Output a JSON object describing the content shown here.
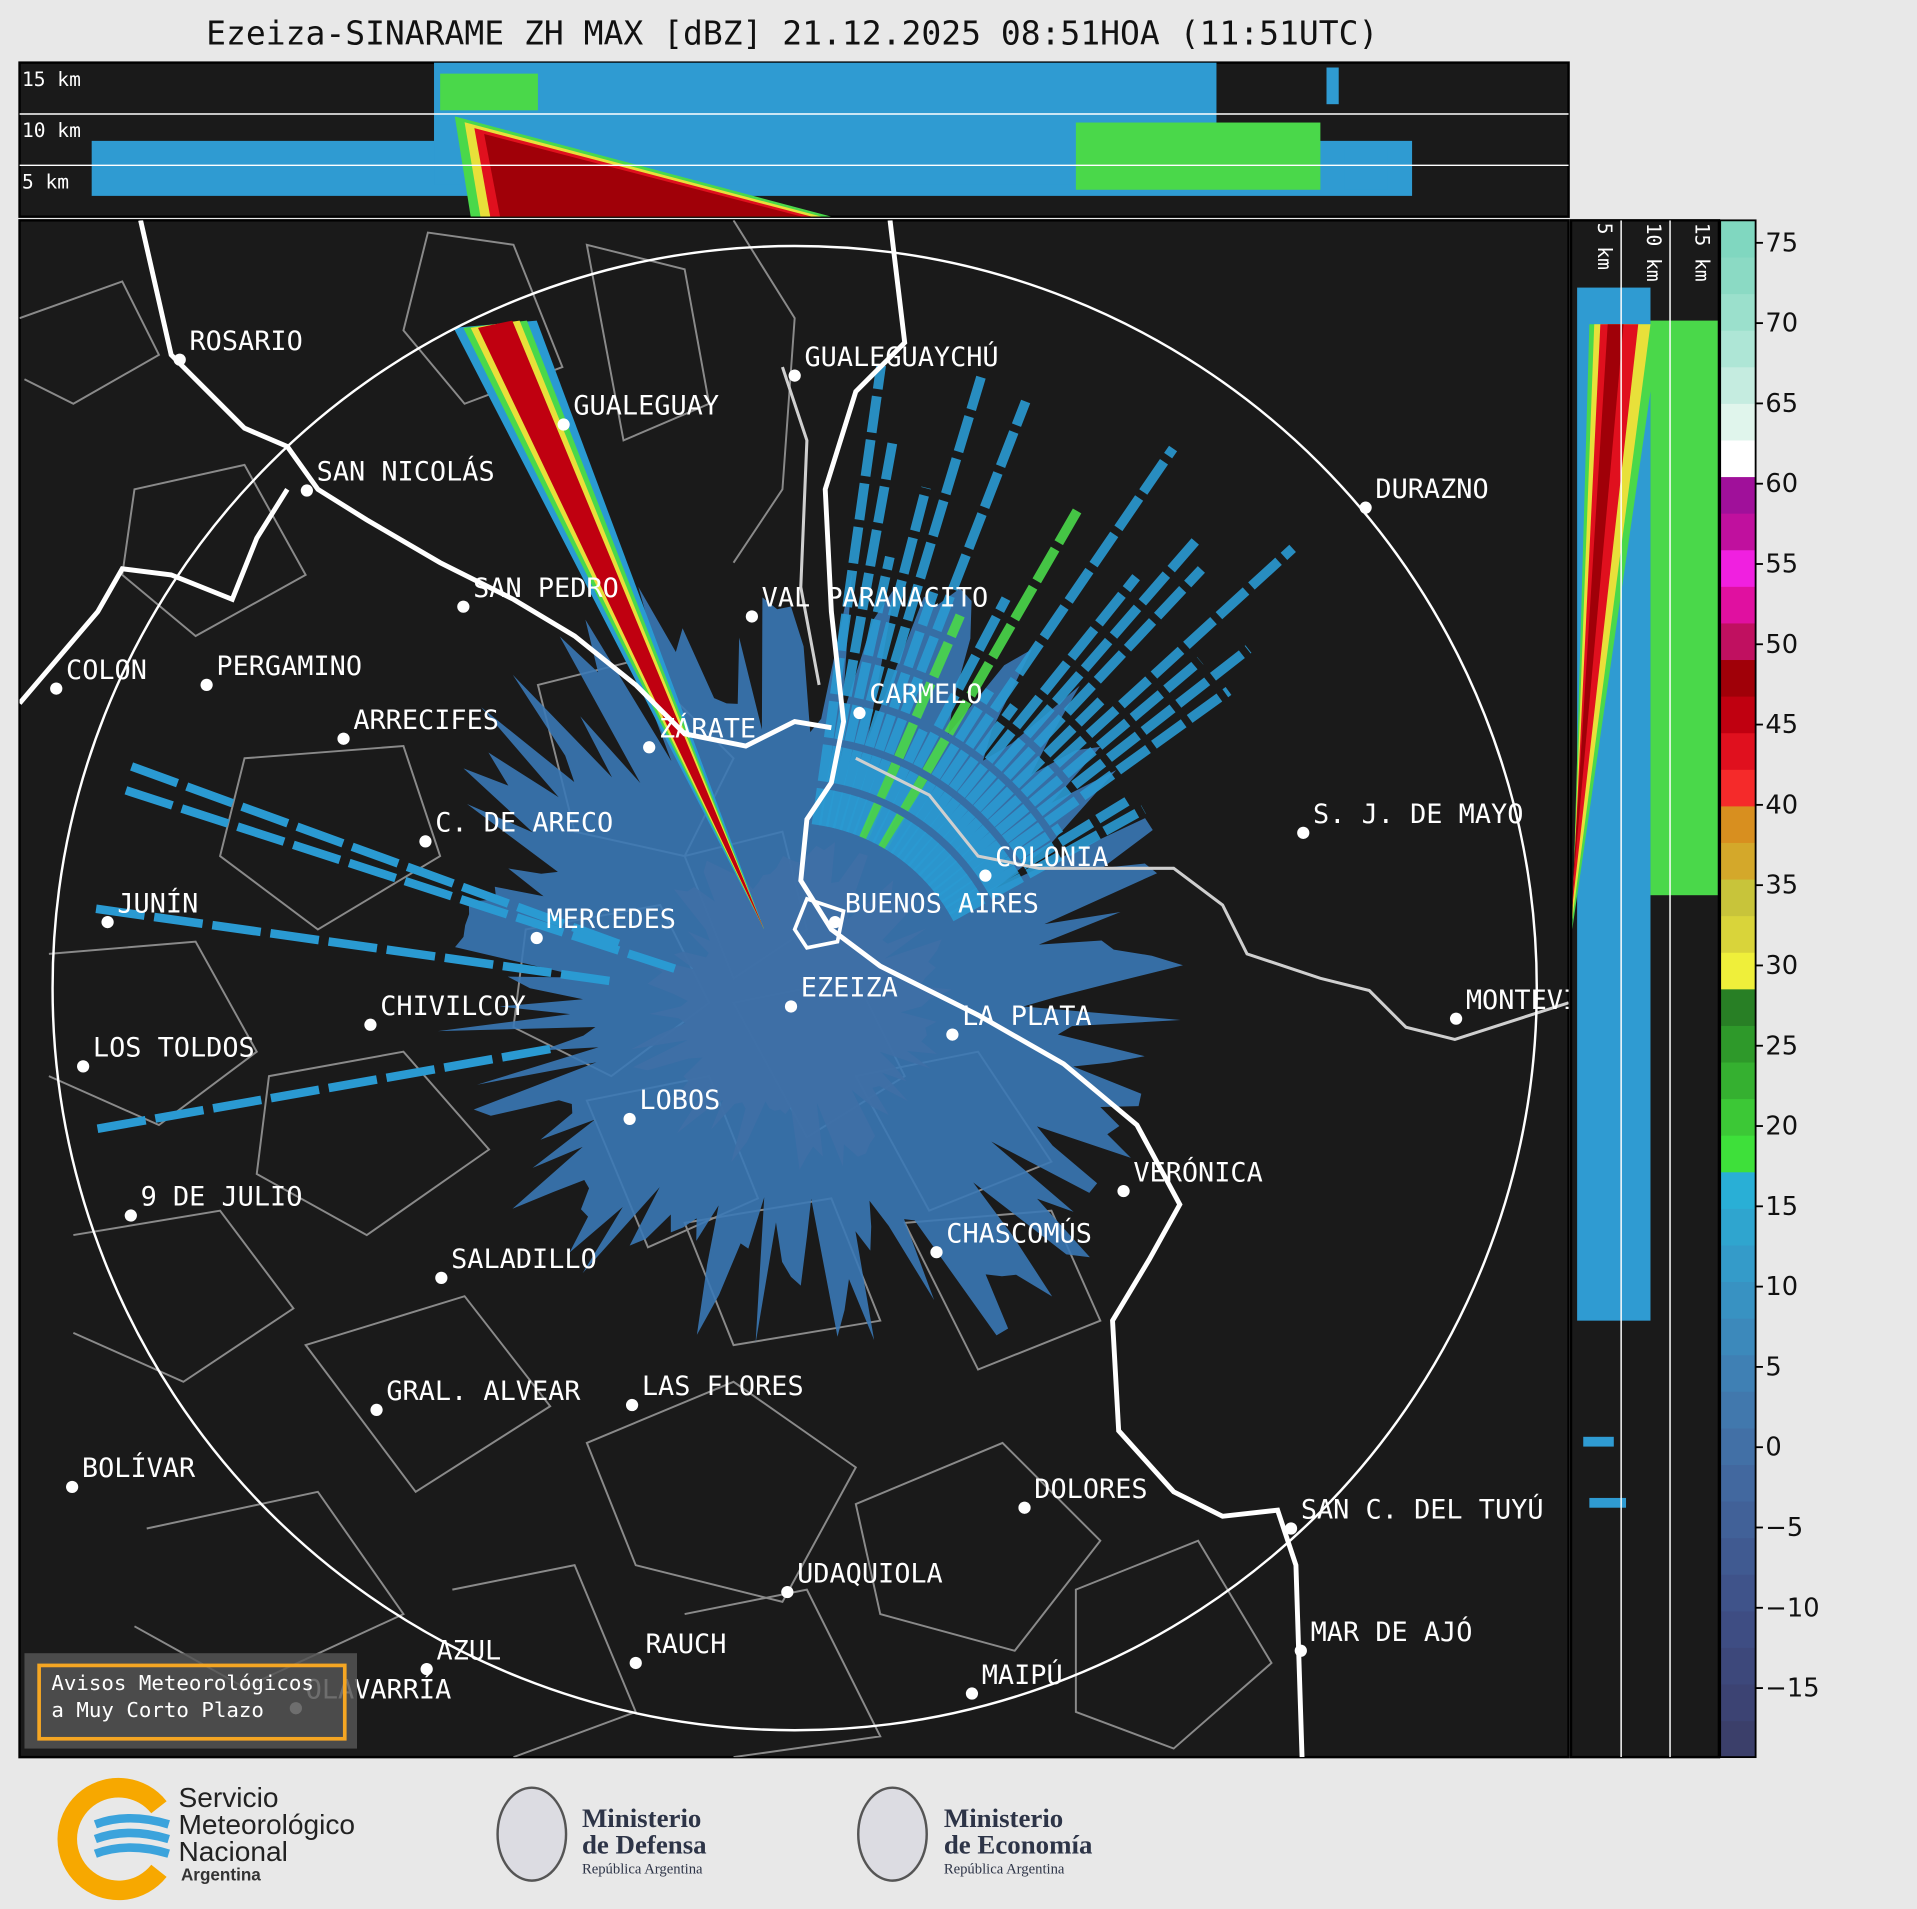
{
  "title": "Ezeiza-SINARAME ZH MAX [dBZ] 21.12.2025 08:51HOA (11:51UTC)",
  "height_labels_top": [
    "15 km",
    "10 km",
    "5 km"
  ],
  "height_labels_side": [
    "5 km",
    "10 km",
    "15 km"
  ],
  "cities": [
    "ROSARIO",
    "GUALEGUAYCHÚ",
    "GUALEGUAY",
    "SAN NICOLÁS",
    "DURAZNO",
    "SAN PEDRO",
    "VAL PARANACITO",
    "COLON",
    "PERGAMINO",
    "CARMELO",
    "ARRECIFES",
    "ZÁRATE",
    "S. J. DE MAYO",
    "C. DE ARECO",
    "COLONIA",
    "BUENOS AIRES",
    "JUNÍN",
    "MERCEDES",
    "EZEIZA",
    "MONTEVIDEO",
    "CHIVILCOY",
    "LA PLATA",
    "LOS TOLDOS",
    "LOBOS",
    "VERÓNICA",
    "9 DE JULIO",
    "CHASCOMÚS",
    "SALADILLO",
    "GRAL. ALVEAR",
    "LAS FLORES",
    "BOLÍVAR",
    "DOLORES",
    "SAN C. DEL TUYÚ",
    "UDAQUIOLA",
    "MAR DE AJÓ",
    "RAUCH",
    "AZUL",
    "OLAVARRÍA",
    "MAIPÚ"
  ],
  "colorbar": {
    "lim": [
      -19.3,
      76.4
    ],
    "ticks": [
      75,
      70,
      65,
      60,
      55,
      50,
      45,
      40,
      35,
      30,
      25,
      20,
      15,
      10,
      5,
      0,
      {
        "value": -5,
        "label": "−5"
      },
      {
        "value": -10,
        "label": "−10"
      },
      {
        "value": -15,
        "label": "−15"
      }
    ],
    "colors": [
      "#3b3f6a",
      "#3c4373",
      "#3d487b",
      "#3e4d83",
      "#3f538a",
      "#405a91",
      "#416198",
      "#42689f",
      "#4270a6",
      "#4178ad",
      "#3f80b4",
      "#3c89bb",
      "#3892c2",
      "#349bc9",
      "#2fa5cf",
      "#29afd6",
      "#3ee03a",
      "#3cc836",
      "#35b030",
      "#2e992a",
      "#287f25",
      "#efef3a",
      "#d9d43a",
      "#c8c43a",
      "#d4a82a",
      "#d88f1f",
      "#f52a2a",
      "#e0101e",
      "#c00010",
      "#a00008",
      "#c01060",
      "#e010a0",
      "#f020e0",
      "#c0109e",
      "#a0109a",
      "#ffffff",
      "#e0f5ec",
      "#c5ece0",
      "#aee6d6",
      "#9be0cc",
      "#8bdac4",
      "#80d7c0"
    ]
  },
  "notice": [
    "Avisos Meteorológicos",
    "a Muy Corto Plazo"
  ],
  "logos": [
    {
      "lines": [
        "Servicio",
        "Meteorológico",
        "Nacional"
      ],
      "sub": "Argentina"
    },
    {
      "lines": [
        "Ministerio",
        "de Defensa"
      ],
      "sub": "República Argentina"
    },
    {
      "lines": [
        "Ministerio",
        "de Economía"
      ],
      "sub": "República Argentina"
    }
  ]
}
